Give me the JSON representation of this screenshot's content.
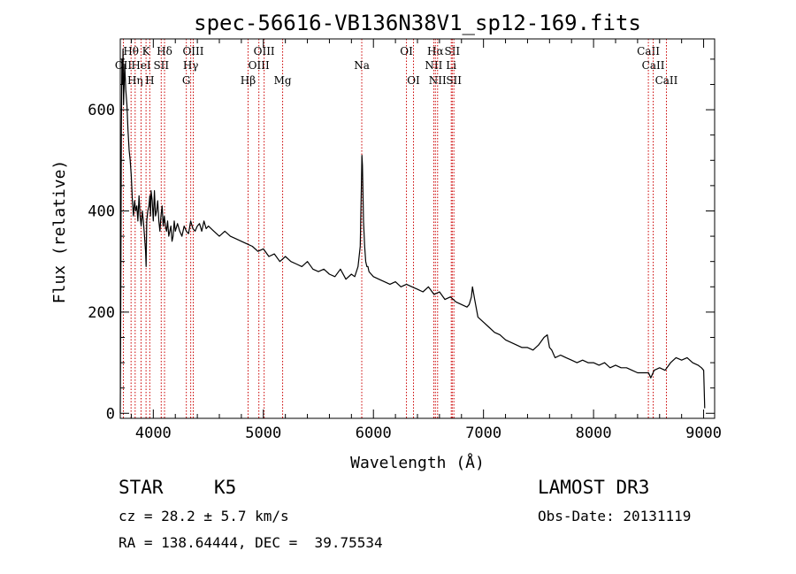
{
  "chart_data": {
    "type": "line",
    "title": "spec-56616-VB136N38V1_sp12-169.fits",
    "xlabel": "Wavelength (Å)",
    "ylabel": "Flux (relative)",
    "xlim": [
      3700,
      9100
    ],
    "ylim": [
      -10,
      740
    ],
    "xticks": [
      4000,
      5000,
      6000,
      7000,
      8000,
      9000
    ],
    "yticks": [
      0,
      200,
      400,
      600
    ],
    "series": [
      {
        "name": "spectrum",
        "x": [
          3700,
          3705,
          3710,
          3715,
          3720,
          3725,
          3730,
          3740,
          3750,
          3760,
          3770,
          3780,
          3790,
          3800,
          3810,
          3820,
          3830,
          3840,
          3850,
          3860,
          3870,
          3880,
          3890,
          3900,
          3910,
          3920,
          3930,
          3935,
          3940,
          3950,
          3960,
          3968,
          3975,
          3980,
          3990,
          4000,
          4010,
          4020,
          4030,
          4040,
          4050,
          4060,
          4070,
          4080,
          4090,
          4100,
          4110,
          4120,
          4130,
          4140,
          4150,
          4160,
          4170,
          4180,
          4190,
          4200,
          4220,
          4240,
          4260,
          4280,
          4300,
          4320,
          4340,
          4360,
          4380,
          4400,
          4420,
          4440,
          4460,
          4480,
          4500,
          4550,
          4600,
          4650,
          4700,
          4750,
          4800,
          4850,
          4900,
          4950,
          5000,
          5050,
          5100,
          5150,
          5200,
          5250,
          5300,
          5350,
          5400,
          5450,
          5500,
          5550,
          5600,
          5650,
          5700,
          5750,
          5800,
          5830,
          5860,
          5880,
          5890,
          5895,
          5900,
          5910,
          5920,
          5930,
          5940,
          5950,
          5960,
          5980,
          6000,
          6050,
          6100,
          6150,
          6200,
          6250,
          6300,
          6350,
          6400,
          6450,
          6500,
          6550,
          6600,
          6650,
          6700,
          6750,
          6800,
          6850,
          6870,
          6890,
          6900,
          6920,
          6950,
          7000,
          7050,
          7100,
          7150,
          7200,
          7250,
          7300,
          7350,
          7400,
          7450,
          7500,
          7550,
          7580,
          7600,
          7620,
          7650,
          7700,
          7750,
          7800,
          7850,
          7900,
          7950,
          8000,
          8050,
          8100,
          8150,
          8200,
          8250,
          8300,
          8350,
          8400,
          8450,
          8500,
          8520,
          8550,
          8600,
          8650,
          8700,
          8750,
          8800,
          8850,
          8900,
          8950,
          8980,
          9000,
          9010
        ],
        "values": [
          0,
          250,
          560,
          700,
          650,
          720,
          610,
          690,
          640,
          610,
          560,
          520,
          500,
          470,
          420,
          390,
          420,
          400,
          410,
          380,
          430,
          390,
          370,
          400,
          380,
          350,
          320,
          290,
          380,
          400,
          410,
          430,
          390,
          440,
          420,
          380,
          440,
          390,
          400,
          420,
          380,
          360,
          390,
          410,
          370,
          390,
          370,
          360,
          380,
          350,
          360,
          370,
          340,
          350,
          380,
          360,
          375,
          360,
          350,
          370,
          360,
          355,
          380,
          365,
          360,
          370,
          375,
          360,
          380,
          365,
          370,
          360,
          350,
          360,
          350,
          345,
          340,
          335,
          330,
          320,
          325,
          310,
          315,
          300,
          310,
          300,
          295,
          290,
          300,
          285,
          280,
          285,
          275,
          270,
          285,
          265,
          275,
          270,
          290,
          330,
          440,
          510,
          490,
          380,
          330,
          300,
          290,
          290,
          280,
          275,
          270,
          265,
          260,
          255,
          260,
          250,
          255,
          250,
          245,
          240,
          250,
          235,
          240,
          225,
          230,
          220,
          215,
          210,
          215,
          230,
          250,
          225,
          190,
          180,
          170,
          160,
          155,
          145,
          140,
          135,
          130,
          130,
          125,
          135,
          150,
          155,
          130,
          125,
          110,
          115,
          110,
          105,
          100,
          105,
          100,
          100,
          95,
          100,
          90,
          95,
          90,
          90,
          85,
          80,
          80,
          80,
          70,
          85,
          90,
          85,
          100,
          110,
          105,
          110,
          100,
          95,
          90,
          85,
          10
        ],
        "color": "#000000"
      }
    ],
    "lines": [
      {
        "wl": 3728,
        "label": "OII",
        "row": 2
      },
      {
        "wl": 3798,
        "label": "Hθ",
        "row": 1
      },
      {
        "wl": 3835,
        "label": "Hη",
        "row": 3
      },
      {
        "wl": 3889,
        "label": "HeI",
        "row": 2
      },
      {
        "wl": 3934,
        "label": "K",
        "row": 1
      },
      {
        "wl": 3968,
        "label": "H",
        "row": 3
      },
      {
        "wl": 4072,
        "label": "SII",
        "row": 2
      },
      {
        "wl": 4102,
        "label": "Hδ",
        "row": 1
      },
      {
        "wl": 4300,
        "label": "G",
        "row": 3
      },
      {
        "wl": 4340,
        "label": "Hγ",
        "row": 2
      },
      {
        "wl": 4363,
        "label": "OIII",
        "row": 1
      },
      {
        "wl": 4861,
        "label": "Hβ",
        "row": 3
      },
      {
        "wl": 4959,
        "label": "OIII",
        "row": 2
      },
      {
        "wl": 5007,
        "label": "OIII",
        "row": 1
      },
      {
        "wl": 5175,
        "label": "Mg",
        "row": 3
      },
      {
        "wl": 5894,
        "label": "Na",
        "row": 2
      },
      {
        "wl": 6300,
        "label": "OI",
        "row": 1
      },
      {
        "wl": 6364,
        "label": "OI",
        "row": 3
      },
      {
        "wl": 6548,
        "label": "NII",
        "row": 2
      },
      {
        "wl": 6563,
        "label": "Hα",
        "row": 1
      },
      {
        "wl": 6583,
        "label": "NII",
        "row": 3
      },
      {
        "wl": 6707,
        "label": "Li",
        "row": 2
      },
      {
        "wl": 6716,
        "label": "SII",
        "row": 1
      },
      {
        "wl": 6731,
        "label": "SII",
        "row": 3
      },
      {
        "wl": 8498,
        "label": "CaII",
        "row": 1
      },
      {
        "wl": 8542,
        "label": "CaII",
        "row": 2
      },
      {
        "wl": 8662,
        "label": "CaII",
        "row": 3
      }
    ],
    "line_color": "#cc0000"
  },
  "info": {
    "class": "STAR",
    "subclass": "K5",
    "survey": "LAMOST DR3",
    "redshift": "cz = 28.2 ± 5.7 km/s",
    "obsdate": "Obs-Date: 20131119",
    "coords": "RA = 138.64444, DEC =  39.75534"
  }
}
